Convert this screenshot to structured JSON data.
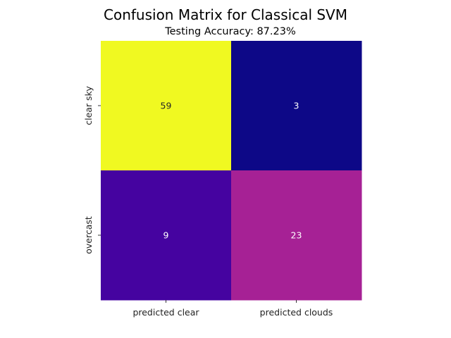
{
  "chart_data": {
    "type": "heatmap",
    "title": "Confusion Matrix for Classical SVM",
    "subtitle": "Testing Accuracy: 87.23%",
    "x_categories": [
      "predicted clear",
      "predicted clouds"
    ],
    "y_categories": [
      "clear sky",
      "overcast"
    ],
    "values": [
      [
        59,
        3
      ],
      [
        9,
        23
      ]
    ],
    "colormap": "plasma",
    "value_range": [
      3,
      59
    ],
    "colorbar": false,
    "cell_colors": [
      [
        "#f0f921",
        "#0d0887"
      ],
      [
        "#4503a0",
        "#a62195"
      ]
    ],
    "annotation_colors": [
      [
        "#262626",
        "#ffffff"
      ],
      [
        "#ffffff",
        "#ffffff"
      ]
    ]
  }
}
